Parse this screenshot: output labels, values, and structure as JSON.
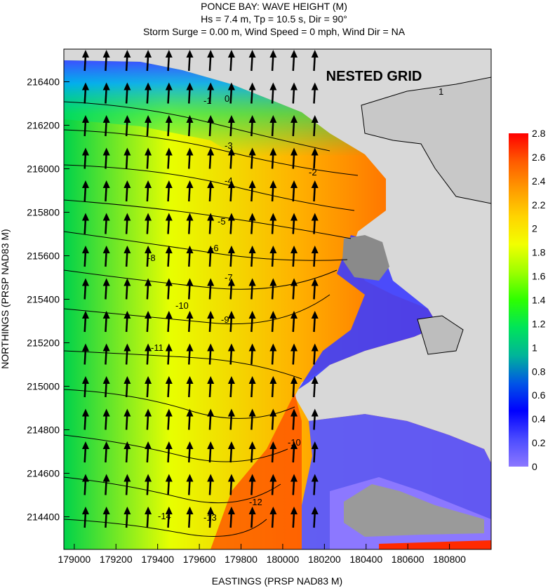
{
  "chart_data": {
    "type": "heatmap",
    "title": "PONCE BAY: WAVE HEIGHT (M)",
    "subtitle_lines": [
      "Hs = 7.4 m, Tp = 10.5 s, Dir = 90°",
      "Storm Surge = 0.00 m, Wind Speed = 0 mph, Wind Dir = NA"
    ],
    "annotation": "NESTED GRID",
    "xlabel": "EASTINGS (PRSP NAD83 M)",
    "ylabel": "NORTHINGS (PRSP NAD83 M)",
    "x_ticks": [
      "179000",
      "179200",
      "179400",
      "179600",
      "179800",
      "180000",
      "180200",
      "180400",
      "180600",
      "180800"
    ],
    "y_ticks": [
      "216400",
      "216200",
      "216000",
      "215800",
      "215600",
      "215400",
      "215200",
      "215000",
      "214800",
      "214600",
      "214400"
    ],
    "xlim": [
      178950,
      181000
    ],
    "ylim": [
      214250,
      216550
    ],
    "colorbar": {
      "ticks": [
        "2.8",
        "2.6",
        "2.4",
        "2.2",
        "2",
        "1.8",
        "1.6",
        "1.4",
        "1.2",
        "1",
        "0.8",
        "0.6",
        "0.4",
        "0.2",
        "0"
      ],
      "range": [
        0,
        2.8
      ],
      "colors": [
        "#ff0000",
        "#ff5a00",
        "#ff9a00",
        "#ffd400",
        "#f2ff00",
        "#9cff00",
        "#2dff00",
        "#00e45a",
        "#00b49a",
        "#0055e6",
        "#0000ff",
        "#4b4bff",
        "#8c78ff"
      ]
    },
    "bathymetry_contour_labels": [
      "-1",
      "-2",
      "-3",
      "-4",
      "-5",
      "-6",
      "-7",
      "-8",
      "-9",
      "-10",
      "-11",
      "-12",
      "-13",
      "-14",
      "0",
      "1"
    ],
    "land_color": "#d8d8d8",
    "vector_field": "wave direction arrows pointing north"
  }
}
